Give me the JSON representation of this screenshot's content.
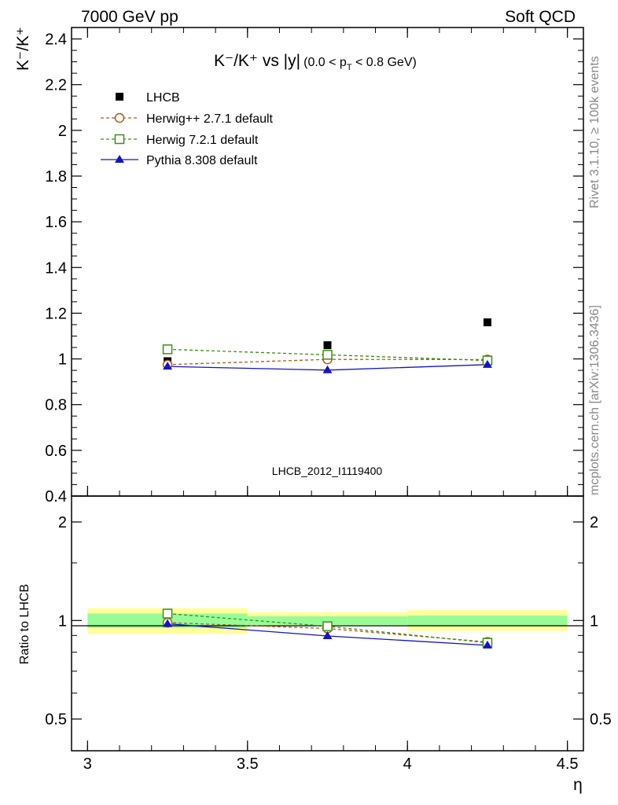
{
  "header": {
    "left": "7000 GeV pp",
    "right": "Soft QCD"
  },
  "side_labels": {
    "rivet": "Rivet 3.1.10, ≥ 100k events",
    "mcplots": "mcplots.cern.ch [arXiv:1306.3436]"
  },
  "analysis_id": "LHCB_2012_I1119400",
  "chart_data": [
    {
      "type": "scatter",
      "title_main": "K⁻/K⁺ vs |y|",
      "title_sub": "(0.0 < p",
      "title_sub_index": "T",
      "title_sub_end": " < 0.8 GeV)",
      "ylabel": "K⁻/K⁺",
      "ylim": [
        0.4,
        2.45
      ],
      "yticks": [
        0.4,
        0.6,
        0.8,
        1,
        1.2,
        1.4,
        1.6,
        1.8,
        2,
        2.2,
        2.4
      ],
      "ytick_labels": [
        "0.4",
        "0.6",
        "0.8",
        "1",
        "1.2",
        "1.4",
        "1.6",
        "1.8",
        "2",
        "2.2",
        "2.4"
      ],
      "xlim": [
        2.95,
        4.55
      ],
      "x": [
        3.25,
        3.75,
        4.25
      ],
      "series": [
        {
          "name": "LHCB",
          "values": [
            0.99,
            1.06,
            1.16
          ],
          "color": "#000000",
          "marker": "filled-square",
          "line": "none"
        },
        {
          "name": "Herwig++ 2.7.1 default",
          "values": [
            0.975,
            0.998,
            0.997
          ],
          "color": "#b25a16",
          "marker": "open-circle",
          "line": "dashed"
        },
        {
          "name": "Herwig 7.2.1 default",
          "values": [
            1.042,
            1.018,
            0.993
          ],
          "color": "#3b8f15",
          "marker": "open-square",
          "line": "dashed"
        },
        {
          "name": "Pythia 8.308 default",
          "values": [
            0.967,
            0.951,
            0.975
          ],
          "color": "#1313c8",
          "marker": "filled-triangle",
          "line": "solid"
        }
      ]
    },
    {
      "type": "line",
      "ylabel": "Ratio to LHCB",
      "xlabel": "η",
      "scale": "log",
      "ylim": [
        0.4,
        2.4
      ],
      "yticks": [
        0.5,
        1,
        2
      ],
      "ytick_labels": [
        "0.5",
        "1",
        "2"
      ],
      "xlim": [
        2.95,
        4.55
      ],
      "xticks": [
        3,
        3.5,
        4,
        4.5
      ],
      "xtick_labels": [
        "3",
        "3.5",
        "4",
        "4.5"
      ],
      "bins": [
        {
          "lo": 3.0,
          "hi": 3.5,
          "stat": [
            0.95,
            1.05
          ],
          "total": [
            0.91,
            1.09
          ]
        },
        {
          "lo": 3.5,
          "hi": 4.0,
          "stat": [
            0.97,
            1.03
          ],
          "total": [
            0.97,
            1.06
          ]
        },
        {
          "lo": 4.0,
          "hi": 4.5,
          "stat": [
            0.965,
            1.035
          ],
          "total": [
            0.93,
            1.075
          ]
        }
      ],
      "band_colors": {
        "total": "#ffff99",
        "stat": "#98fb98"
      },
      "x": [
        3.25,
        3.75,
        4.25
      ],
      "series": [
        {
          "name": "Herwig++ 2.7.1 default",
          "values": [
            0.985,
            0.945,
            0.86
          ],
          "color": "#b25a16",
          "marker": "open-circle",
          "line": "dashed"
        },
        {
          "name": "Herwig 7.2.1 default",
          "values": [
            1.05,
            0.96,
            0.855
          ],
          "color": "#3b8f15",
          "marker": "open-square",
          "line": "dashed"
        },
        {
          "name": "Pythia 8.308 default",
          "values": [
            0.977,
            0.897,
            0.84
          ],
          "color": "#1313c8",
          "marker": "filled-triangle",
          "line": "solid"
        }
      ]
    }
  ]
}
